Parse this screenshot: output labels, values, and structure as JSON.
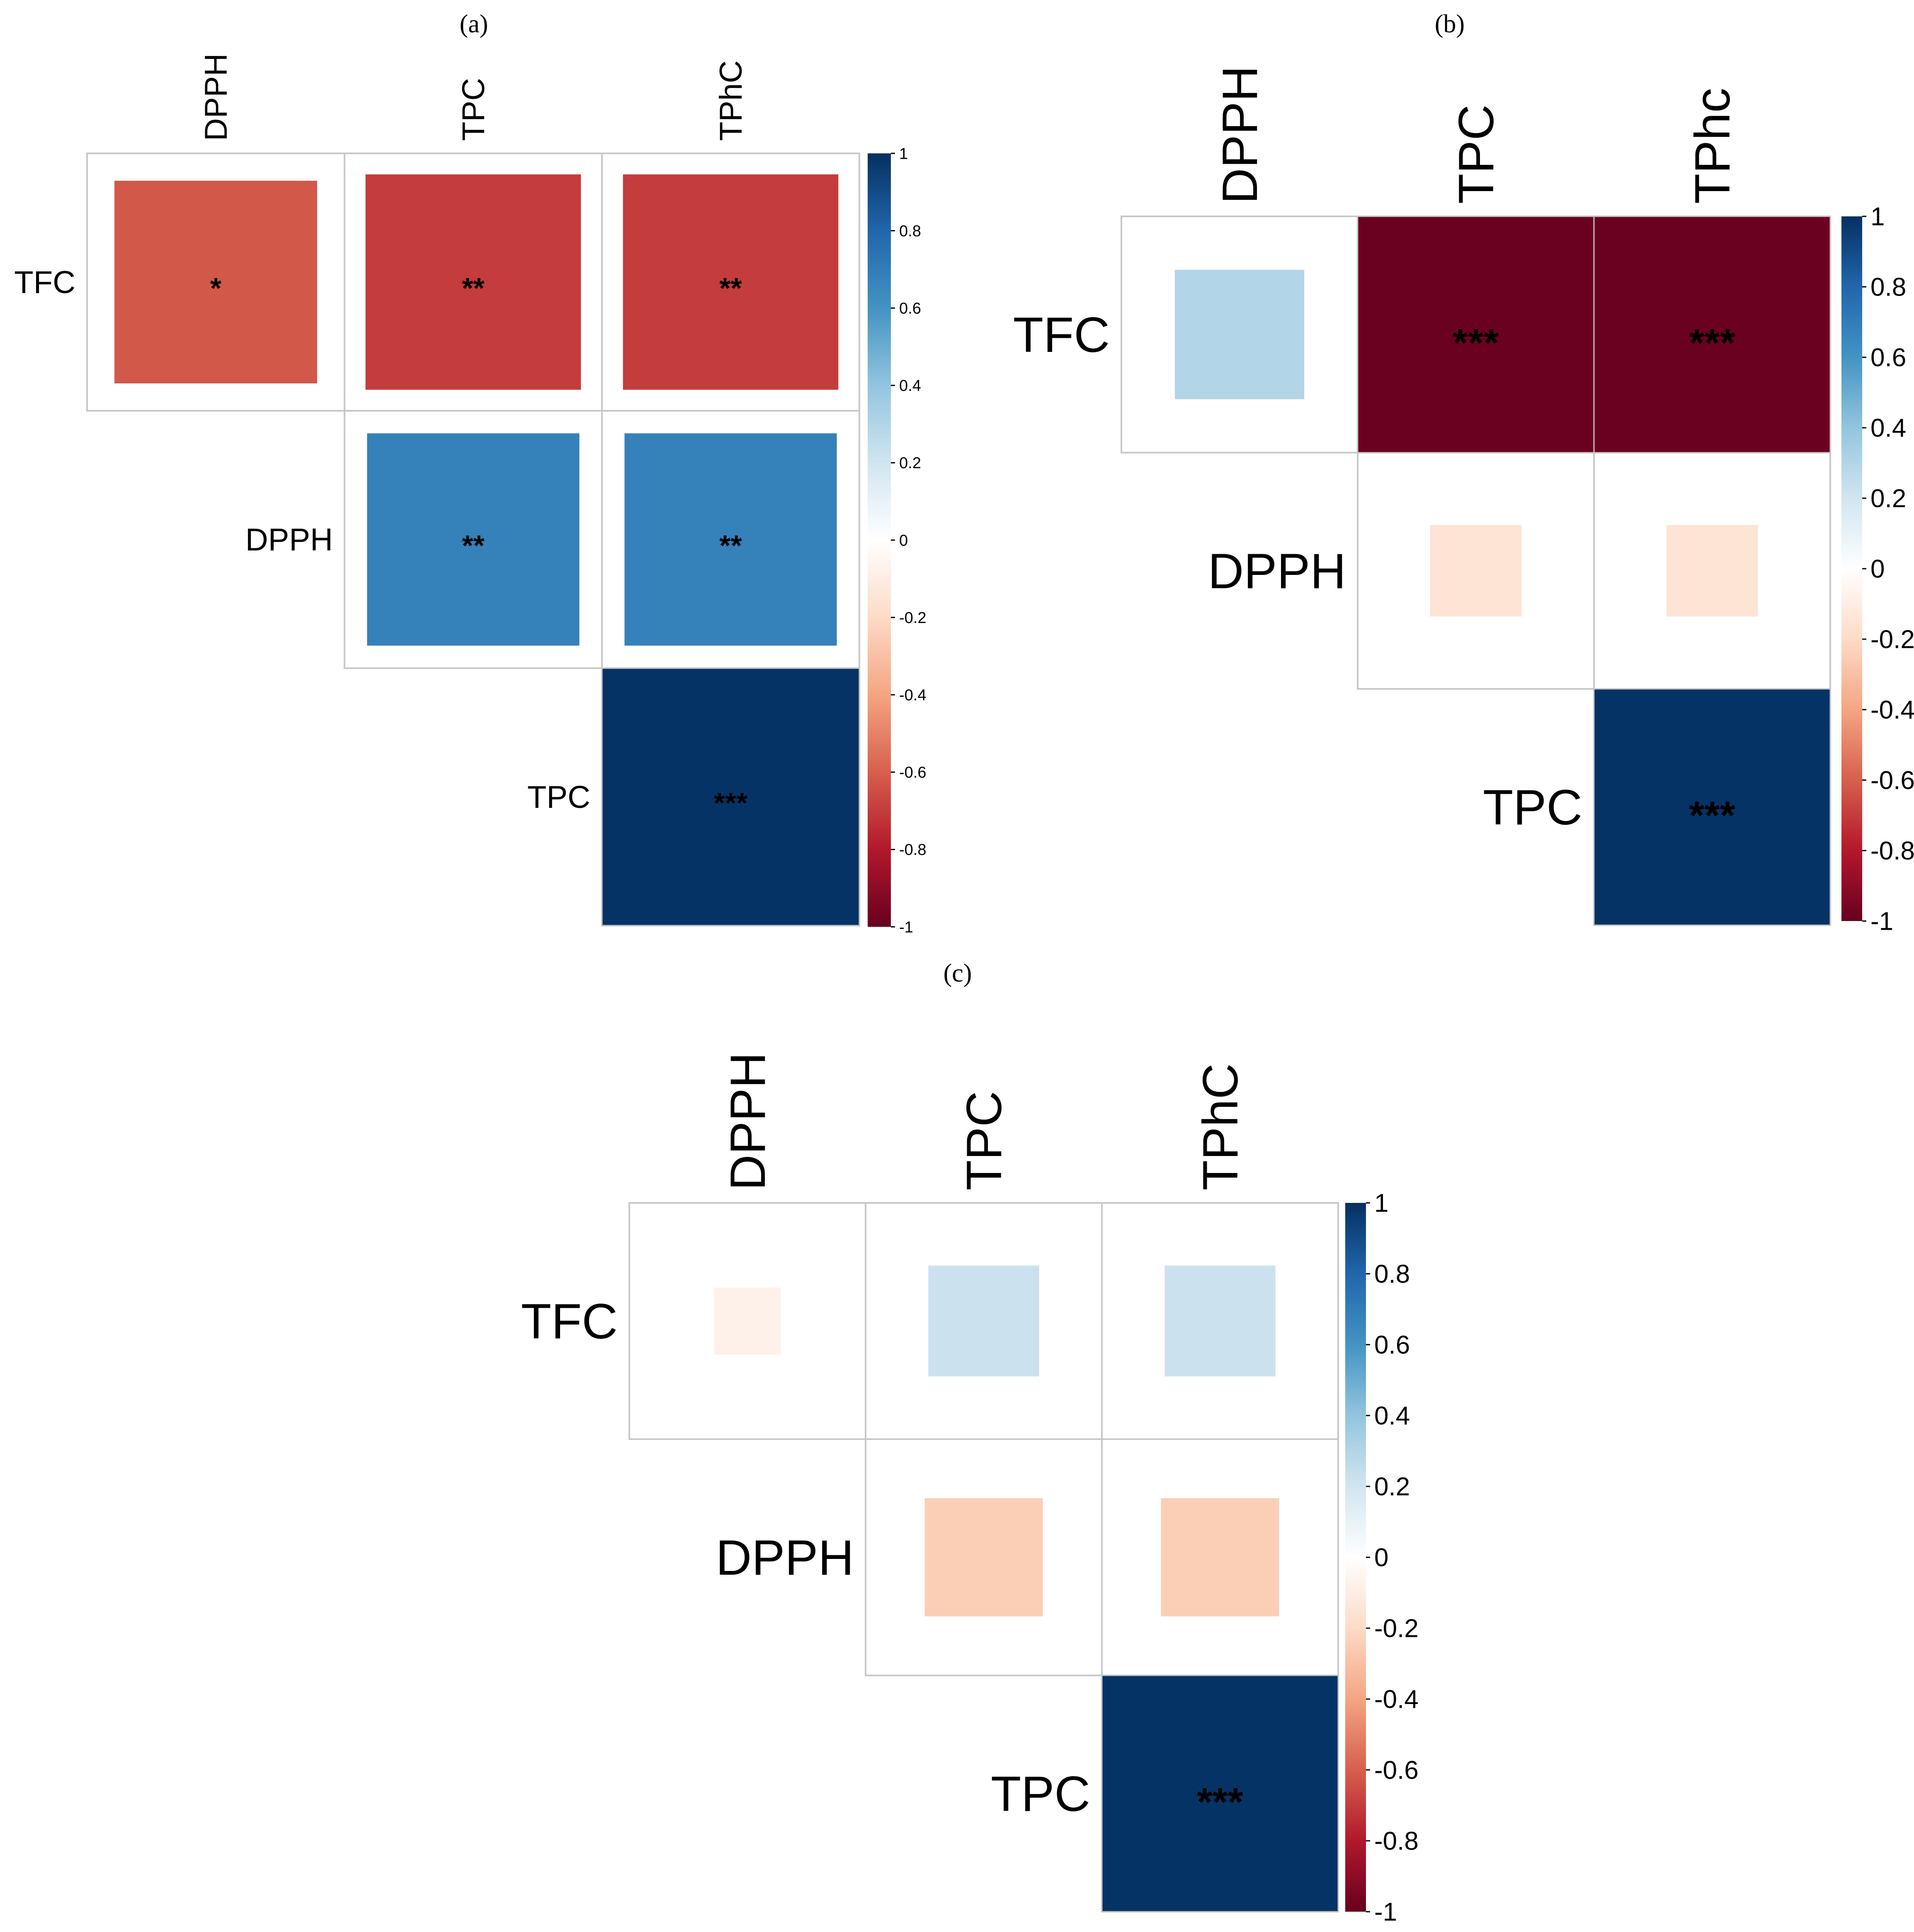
{
  "figure": {
    "panels": [
      {
        "label": "(a)"
      },
      {
        "label": "(b)"
      },
      {
        "label": "(c)"
      }
    ]
  },
  "colorbar_ticks": [
    "1",
    "0.8",
    "0.6",
    "0.4",
    "0.2",
    "0",
    "-0.2",
    "-0.4",
    "-0.6",
    "-0.8",
    "-1"
  ],
  "chart_data": [
    {
      "type": "heatmap",
      "title": "(a)",
      "columns": [
        "DPPH",
        "TPC",
        "TPhC"
      ],
      "rows": [
        "TFC",
        "DPPH",
        "TPC"
      ],
      "cells": [
        {
          "row": "TFC",
          "col": "DPPH",
          "value": -0.62,
          "stars": "*"
        },
        {
          "row": "TFC",
          "col": "TPC",
          "value": -0.7,
          "stars": "**"
        },
        {
          "row": "TFC",
          "col": "TPhC",
          "value": -0.7,
          "stars": "**"
        },
        {
          "row": "DPPH",
          "col": "TPC",
          "value": 0.68,
          "stars": "**"
        },
        {
          "row": "DPPH",
          "col": "TPhC",
          "value": 0.68,
          "stars": "**"
        },
        {
          "row": "TPC",
          "col": "TPhC",
          "value": 0.99,
          "stars": "***"
        }
      ],
      "colorbar": {
        "min": -1,
        "max": 1
      }
    },
    {
      "type": "heatmap",
      "title": "(b)",
      "columns": [
        "DPPH",
        "TPC",
        "TPhc"
      ],
      "rows": [
        "TFC",
        "DPPH",
        "TPC"
      ],
      "cells": [
        {
          "row": "TFC",
          "col": "DPPH",
          "value": 0.3,
          "stars": ""
        },
        {
          "row": "TFC",
          "col": "TPC",
          "value": -0.99,
          "stars": "***"
        },
        {
          "row": "TFC",
          "col": "TPhc",
          "value": -0.99,
          "stars": "***"
        },
        {
          "row": "DPPH",
          "col": "TPC",
          "value": -0.15,
          "stars": ""
        },
        {
          "row": "DPPH",
          "col": "TPhc",
          "value": -0.15,
          "stars": ""
        },
        {
          "row": "TPC",
          "col": "TPhc",
          "value": 0.99,
          "stars": "***"
        }
      ],
      "colorbar": {
        "min": -1,
        "max": 1
      }
    },
    {
      "type": "heatmap",
      "title": "(c)",
      "columns": [
        "DPPH",
        "TPC",
        "TPhC"
      ],
      "rows": [
        "TFC",
        "DPPH",
        "TPC"
      ],
      "cells": [
        {
          "row": "TFC",
          "col": "DPPH",
          "value": -0.08,
          "stars": ""
        },
        {
          "row": "TFC",
          "col": "TPC",
          "value": 0.22,
          "stars": ""
        },
        {
          "row": "TFC",
          "col": "TPhC",
          "value": 0.22,
          "stars": ""
        },
        {
          "row": "DPPH",
          "col": "TPC",
          "value": -0.25,
          "stars": ""
        },
        {
          "row": "DPPH",
          "col": "TPhC",
          "value": -0.25,
          "stars": ""
        },
        {
          "row": "TPC",
          "col": "TPhC",
          "value": 0.99,
          "stars": "***"
        }
      ],
      "colorbar": {
        "min": -1,
        "max": 1
      }
    }
  ]
}
